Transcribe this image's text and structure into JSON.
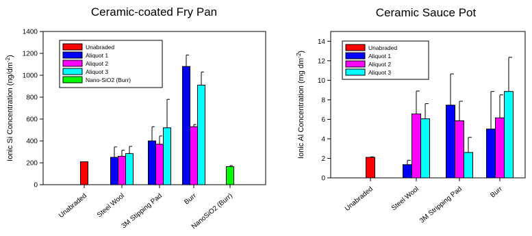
{
  "chart_data": [
    {
      "type": "bar",
      "title": "Ceramic-coated Fry Pan",
      "ylabel": "Ionic Si Concentration (ng/dm",
      "ylabel_sup": "-2",
      "ylabel_close": ")",
      "ylim": [
        0,
        1400
      ],
      "yticks": [
        0,
        200,
        400,
        600,
        800,
        1000,
        1200,
        1400
      ],
      "categories": [
        "Unabraded",
        "Steel Wool",
        "3M Stipping Pad",
        "Burr",
        "NanoSiO2 (Burr)"
      ],
      "legend_placement": "top-left",
      "grid": false,
      "series": [
        {
          "name": "Unabraded",
          "color": "#ff0000",
          "values": [
            210,
            null,
            null,
            null,
            null
          ],
          "errors": [
            0,
            null,
            null,
            null,
            null
          ]
        },
        {
          "name": "Aliquot 1",
          "color": "#0000ff",
          "values": [
            null,
            250,
            400,
            1080,
            null
          ],
          "errors": [
            null,
            95,
            130,
            105,
            null
          ]
        },
        {
          "name": "Aliquot 2",
          "color": "#ff00ff",
          "values": [
            null,
            260,
            370,
            530,
            null
          ],
          "errors": [
            null,
            55,
            75,
            20,
            null
          ]
        },
        {
          "name": "Aliquot 3",
          "color": "#00ffff",
          "values": [
            null,
            285,
            520,
            910,
            null
          ],
          "errors": [
            null,
            65,
            260,
            120,
            null
          ]
        },
        {
          "name": "Nano-SiO2 (Burr)",
          "color": "#00ff00",
          "values": [
            null,
            null,
            null,
            null,
            165
          ],
          "errors": [
            null,
            null,
            null,
            null,
            10
          ]
        }
      ]
    },
    {
      "type": "bar",
      "title": "Ceramic Sauce Pot",
      "ylabel": "Ionic Al Concentration (mg dm",
      "ylabel_sup": "-2",
      "ylabel_close": ")",
      "ylim": [
        0,
        15
      ],
      "yticks": [
        0,
        2,
        4,
        6,
        8,
        10,
        12,
        14
      ],
      "categories": [
        "Unabraded",
        "Steel Wool",
        "3M Stripping Pad",
        "Burr"
      ],
      "legend_placement": "top-left",
      "grid": false,
      "series": [
        {
          "name": "Unabraded",
          "color": "#ff0000",
          "values": [
            2.1,
            null,
            null,
            null
          ],
          "errors": [
            0.05,
            null,
            null,
            null
          ]
        },
        {
          "name": "Aliquot 1",
          "color": "#0000ff",
          "values": [
            null,
            1.35,
            7.45,
            5.0
          ],
          "errors": [
            null,
            0.45,
            3.2,
            3.85
          ]
        },
        {
          "name": "Aliquot 2",
          "color": "#ff00ff",
          "values": [
            null,
            6.55,
            5.85,
            6.15
          ],
          "errors": [
            null,
            2.35,
            2.0,
            2.35
          ]
        },
        {
          "name": "Aliquot 3",
          "color": "#00ffff",
          "values": [
            null,
            6.05,
            2.6,
            8.85
          ],
          "errors": [
            null,
            1.55,
            1.55,
            3.5
          ]
        }
      ]
    }
  ]
}
